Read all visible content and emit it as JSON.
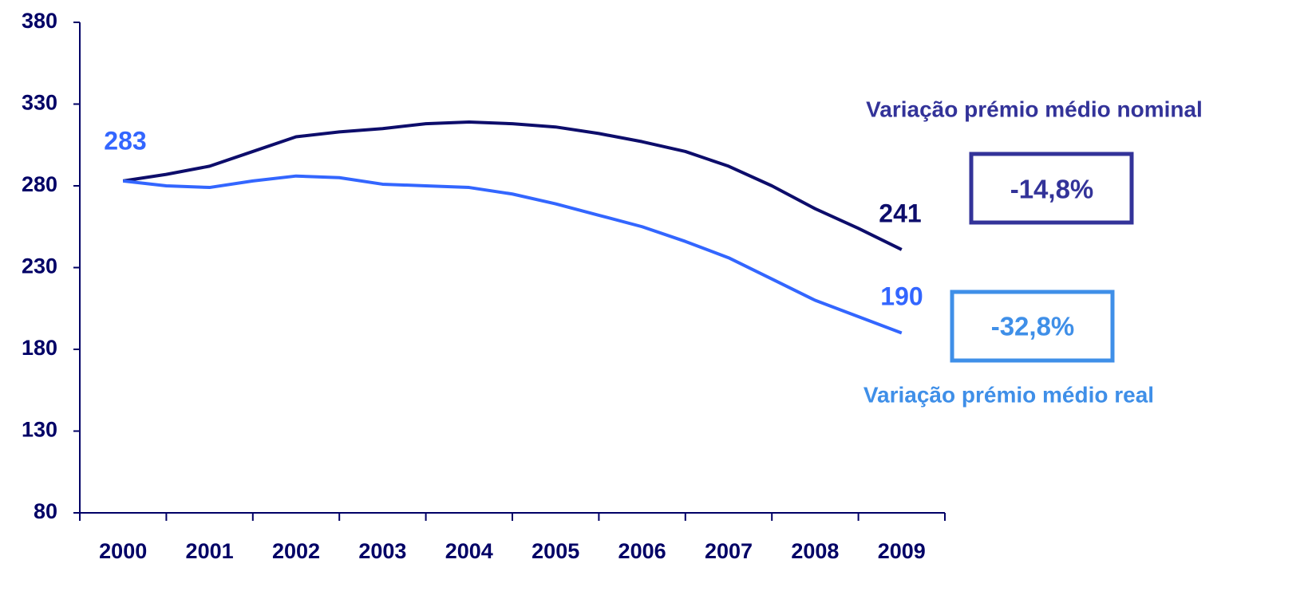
{
  "chart_data": {
    "type": "line",
    "x": [
      2000,
      2000.5,
      2001,
      2001.5,
      2002,
      2002.5,
      2003,
      2003.5,
      2004,
      2004.5,
      2005,
      2005.5,
      2006,
      2006.5,
      2007,
      2007.5,
      2008,
      2008.5,
      2009
    ],
    "xlim": [
      1999.5,
      2009.5
    ],
    "xticks": [
      2000,
      2001,
      2002,
      2003,
      2004,
      2005,
      2006,
      2007,
      2008,
      2009
    ],
    "ylim": [
      80,
      380
    ],
    "yticks": [
      80,
      130,
      180,
      230,
      280,
      330,
      380
    ],
    "series": [
      {
        "name": "Variação prémio médio nominal",
        "color": "#0d0d6b",
        "label_color": "#333399",
        "values": [
          283,
          287,
          292,
          301,
          310,
          313,
          315,
          318,
          319,
          318,
          316,
          312,
          307,
          301,
          292,
          280,
          266,
          254,
          241
        ]
      },
      {
        "name": "Variação prémio médio real",
        "color": "#3366ff",
        "label_color": "#3f8fe8",
        "values": [
          283,
          280,
          279,
          283,
          286,
          285,
          281,
          280,
          279,
          275,
          269,
          262,
          255,
          246,
          236,
          223,
          210,
          200,
          190
        ]
      }
    ],
    "annotations": [
      {
        "text": "283",
        "color": "#3366ff"
      },
      {
        "text": "241",
        "color": "#0d0d6b"
      },
      {
        "text": "190",
        "color": "#3366ff"
      },
      {
        "text": "-14,8%",
        "color": "#333399"
      },
      {
        "text": "-32,8%",
        "color": "#3f8fe8"
      }
    ]
  }
}
